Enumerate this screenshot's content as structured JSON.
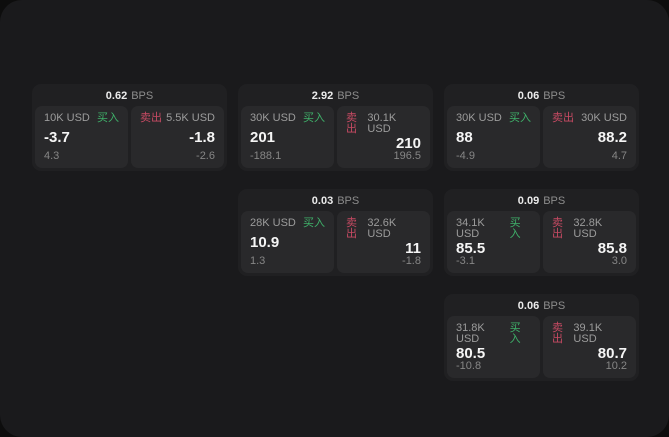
{
  "labels": {
    "buy": "买入",
    "sell": "卖出",
    "bps": "BPS"
  },
  "colors": {
    "buy": "#3fb16a",
    "sell": "#c74a63",
    "window_bg": "#1a1a1c",
    "card_bg": "#202022",
    "panel_bg": "#29292b"
  },
  "cards": [
    {
      "bps": "0.62",
      "buy": {
        "amount": "10K USD",
        "value": "-3.7",
        "delta": "4.3"
      },
      "sell": {
        "amount": "5.5K USD",
        "value": "-1.8",
        "delta": "-2.6"
      }
    },
    {
      "bps": "2.92",
      "buy": {
        "amount": "30K USD",
        "value": "201",
        "delta": "-188.1"
      },
      "sell": {
        "amount": "30.1K USD",
        "value": "210",
        "delta": "196.5"
      }
    },
    {
      "bps": "0.06",
      "buy": {
        "amount": "30K USD",
        "value": "88",
        "delta": "-4.9"
      },
      "sell": {
        "amount": "30K USD",
        "value": "88.2",
        "delta": "4.7"
      }
    },
    {
      "bps": "0.03",
      "buy": {
        "amount": "28K USD",
        "value": "10.9",
        "delta": "1.3"
      },
      "sell": {
        "amount": "32.6K USD",
        "value": "11",
        "delta": "-1.8"
      }
    },
    {
      "bps": "0.09",
      "buy": {
        "amount": "34.1K USD",
        "value": "85.5",
        "delta": "-3.1"
      },
      "sell": {
        "amount": "32.8K USD",
        "value": "85.8",
        "delta": "3.0"
      }
    },
    {
      "bps": "0.06",
      "buy": {
        "amount": "31.8K USD",
        "value": "80.5",
        "delta": "-10.8"
      },
      "sell": {
        "amount": "39.1K USD",
        "value": "80.7",
        "delta": "10.2"
      }
    }
  ]
}
